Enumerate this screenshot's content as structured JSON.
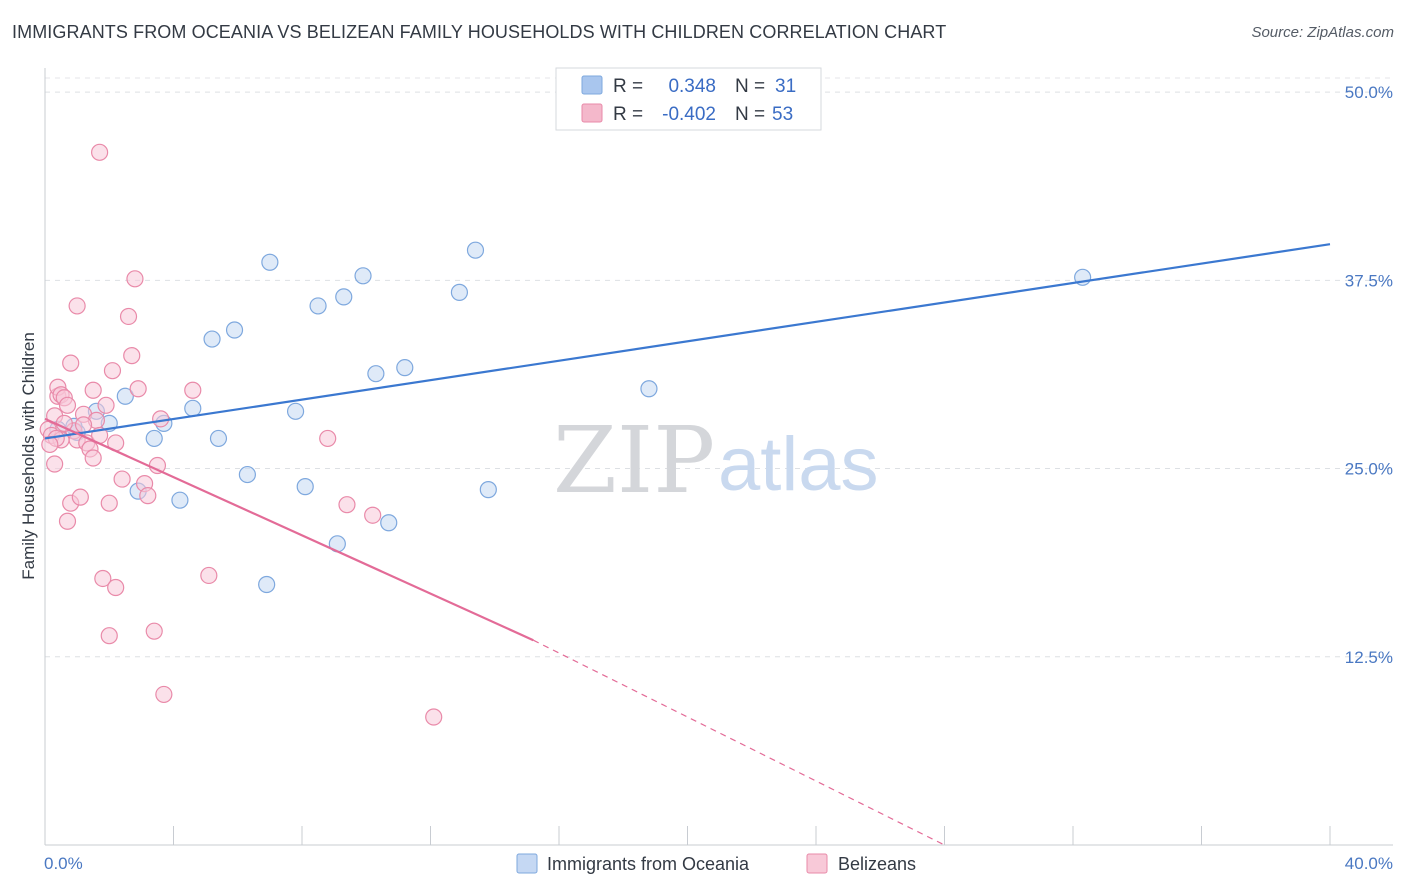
{
  "header": {
    "title": "IMMIGRANTS FROM OCEANIA VS BELIZEAN FAMILY HOUSEHOLDS WITH CHILDREN CORRELATION CHART",
    "source": "Source: ZipAtlas.com"
  },
  "watermark": {
    "zip": "ZIP",
    "atlas": "atlas"
  },
  "legend": {
    "rows": [
      {
        "r_label": "R =",
        "r_value": "0.348",
        "n_label": "N =",
        "n_value": "31",
        "color": "#a9c6ee"
      },
      {
        "r_label": "R =",
        "r_value": "-0.402",
        "n_label": "N =",
        "n_value": "53",
        "color": "#f4b8cb"
      }
    ]
  },
  "chart_data": {
    "type": "scatter",
    "title": "IMMIGRANTS FROM OCEANIA VS BELIZEAN FAMILY HOUSEHOLDS WITH CHILDREN CORRELATION CHART",
    "xlabel": "",
    "ylabel": "Family Households with Children",
    "xlim": [
      0,
      40
    ],
    "ylim": [
      0,
      51.6
    ],
    "x_tick_labels": [
      "0.0%",
      "40.0%"
    ],
    "y_ticks": [
      12.5,
      25.0,
      37.5,
      50.0
    ],
    "y_tick_labels": [
      "12.5%",
      "25.0%",
      "37.5%",
      "50.0%"
    ],
    "grid": true,
    "series": [
      {
        "name": "Immigrants from Oceania",
        "color": "#7ea8de",
        "fill": "#c5d8f3",
        "line_color": "#3b78d0",
        "points": [
          [
            0.4,
            27.6
          ],
          [
            1.6,
            28.8
          ],
          [
            2.0,
            28.0
          ],
          [
            2.5,
            29.8
          ],
          [
            2.9,
            23.5
          ],
          [
            3.4,
            27.0
          ],
          [
            3.7,
            28.0
          ],
          [
            4.2,
            22.9
          ],
          [
            4.6,
            29.0
          ],
          [
            5.2,
            33.6
          ],
          [
            5.4,
            27.0
          ],
          [
            5.9,
            34.2
          ],
          [
            6.3,
            24.6
          ],
          [
            6.9,
            17.3
          ],
          [
            7.0,
            38.7
          ],
          [
            7.8,
            28.8
          ],
          [
            8.1,
            23.8
          ],
          [
            8.5,
            35.8
          ],
          [
            9.1,
            20.0
          ],
          [
            9.3,
            36.4
          ],
          [
            9.9,
            37.8
          ],
          [
            10.3,
            31.3
          ],
          [
            10.7,
            21.4
          ],
          [
            11.2,
            31.7
          ],
          [
            12.9,
            36.7
          ],
          [
            13.4,
            39.5
          ],
          [
            13.8,
            23.6
          ],
          [
            18.8,
            30.3
          ],
          [
            32.3,
            37.7
          ],
          [
            1.0,
            27.4
          ],
          [
            0.9,
            27.8
          ]
        ],
        "trend": {
          "x": [
            0,
            40
          ],
          "y": [
            27.0,
            39.9
          ]
        }
      },
      {
        "name": "Belizeans",
        "color": "#e98aa9",
        "fill": "#f8c9d8",
        "line_color": "#e36b97",
        "points": [
          [
            0.1,
            27.6
          ],
          [
            0.2,
            27.2
          ],
          [
            0.3,
            25.3
          ],
          [
            0.3,
            28.5
          ],
          [
            0.4,
            29.8
          ],
          [
            0.4,
            30.4
          ],
          [
            0.5,
            26.9
          ],
          [
            0.5,
            29.9
          ],
          [
            0.6,
            29.7
          ],
          [
            0.7,
            29.2
          ],
          [
            0.7,
            21.5
          ],
          [
            0.8,
            22.7
          ],
          [
            0.8,
            32.0
          ],
          [
            0.9,
            27.5
          ],
          [
            1.0,
            26.9
          ],
          [
            1.0,
            35.8
          ],
          [
            1.1,
            23.1
          ],
          [
            1.2,
            28.6
          ],
          [
            1.3,
            26.7
          ],
          [
            1.4,
            26.3
          ],
          [
            1.5,
            30.2
          ],
          [
            1.5,
            25.7
          ],
          [
            1.6,
            28.2
          ],
          [
            1.7,
            46.0
          ],
          [
            1.7,
            27.2
          ],
          [
            1.8,
            17.7
          ],
          [
            1.9,
            29.2
          ],
          [
            2.0,
            13.9
          ],
          [
            2.0,
            22.7
          ],
          [
            2.1,
            31.5
          ],
          [
            2.2,
            26.7
          ],
          [
            2.2,
            17.1
          ],
          [
            2.4,
            24.3
          ],
          [
            2.6,
            35.1
          ],
          [
            2.7,
            32.5
          ],
          [
            2.8,
            37.6
          ],
          [
            2.9,
            30.3
          ],
          [
            3.1,
            24.0
          ],
          [
            3.2,
            23.2
          ],
          [
            3.4,
            14.2
          ],
          [
            3.5,
            25.2
          ],
          [
            3.6,
            28.3
          ],
          [
            3.7,
            10.0
          ],
          [
            4.6,
            30.2
          ],
          [
            5.1,
            17.9
          ],
          [
            8.8,
            27.0
          ],
          [
            9.4,
            22.6
          ],
          [
            10.2,
            21.9
          ],
          [
            12.1,
            8.5
          ],
          [
            0.35,
            27.0
          ],
          [
            0.15,
            26.6
          ],
          [
            0.6,
            28.0
          ],
          [
            1.2,
            27.9
          ]
        ],
        "trend": {
          "x": [
            0,
            15.2
          ],
          "y": [
            28.3,
            13.6
          ]
        },
        "trend_dashed": {
          "x": [
            15.2,
            28
          ],
          "y": [
            13.6,
            0.0
          ]
        }
      }
    ]
  }
}
